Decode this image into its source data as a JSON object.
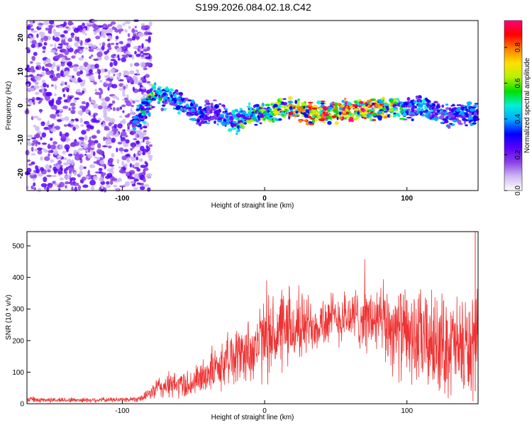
{
  "title": "S199.2026.084.02.18.C42",
  "chart_data": [
    {
      "type": "heatmap",
      "xlabel": "Height of straight line (km)",
      "ylabel": "Frequency (Hz)",
      "xlim": [
        -167,
        150
      ],
      "ylim": [
        -25,
        25
      ],
      "x_ticks": [
        "-100",
        "0",
        "100"
      ],
      "x_tick_values": [
        -100,
        0,
        100
      ],
      "y_ticks": [
        "20",
        "10",
        "0",
        "-10",
        "-20"
      ],
      "y_tick_values": [
        20,
        10,
        0,
        -10,
        -20
      ],
      "colorbar": {
        "label": "Normalized spectral amplitude",
        "range": [
          0,
          0.95
        ],
        "ticks": [
          "0.0",
          "0.2",
          "0.4",
          "0.6",
          "0.8"
        ],
        "tick_values": [
          0.0,
          0.2,
          0.4,
          0.6,
          0.8
        ],
        "colors": [
          "#ffffff",
          "#cfb8f3",
          "#8a40e6",
          "#5a00ff",
          "#0000ff",
          "#00a8ff",
          "#00f0d8",
          "#00e000",
          "#b8f000",
          "#ffe000",
          "#ff8000",
          "#ff0000",
          "#ff0077"
        ]
      },
      "noise_region_x": [
        -167,
        -80
      ],
      "ridge": {
        "x": [
          -92,
          -88,
          -84,
          -80,
          -76,
          -72,
          -66,
          -60,
          -55,
          -50,
          -45,
          -40,
          -35,
          -30,
          -25,
          -20,
          -15,
          -10,
          -5,
          0,
          5,
          10,
          15,
          20,
          30,
          40,
          50,
          60,
          70,
          80,
          90,
          95,
          100,
          105,
          110,
          115,
          120,
          125,
          130,
          135,
          140,
          145,
          150
        ],
        "freq": [
          -6,
          -3,
          -1,
          2,
          4,
          2,
          3,
          1,
          -1,
          -2,
          -3,
          -2,
          -2,
          -3,
          -4,
          -5,
          -4,
          -3,
          -3,
          -2,
          -2,
          -1,
          -1,
          -1,
          -2,
          -2,
          -2,
          -1,
          -1,
          -1,
          -1,
          -1,
          -1,
          -1,
          0,
          -1,
          -2,
          -3,
          -3,
          -2,
          -2,
          -3,
          -2
        ],
        "amplitude": [
          0.3,
          0.45,
          0.5,
          0.55,
          0.5,
          0.45,
          0.4,
          0.4,
          0.35,
          0.35,
          0.35,
          0.3,
          0.3,
          0.35,
          0.4,
          0.5,
          0.55,
          0.55,
          0.55,
          0.5,
          0.55,
          0.65,
          0.7,
          0.75,
          0.8,
          0.85,
          0.9,
          0.9,
          0.85,
          0.8,
          0.7,
          0.5,
          0.4,
          0.4,
          0.4,
          0.45,
          0.4,
          0.35,
          0.35,
          0.35,
          0.4,
          0.4,
          0.35
        ]
      }
    },
    {
      "type": "line",
      "xlabel": "Height of straight line (km)",
      "ylabel": "SNR (10 * v/v)",
      "xlim": [
        -167,
        150
      ],
      "ylim": [
        0,
        545
      ],
      "x_ticks": [
        "-100",
        "0",
        "100"
      ],
      "x_tick_values": [
        -100,
        0,
        100
      ],
      "y_ticks": [
        "0",
        "100",
        "200",
        "300",
        "400",
        "500"
      ],
      "y_tick_values": [
        0,
        100,
        200,
        300,
        400,
        500
      ],
      "color": "#ee3333",
      "envelope": {
        "x": [
          -167,
          -140,
          -120,
          -100,
          -90,
          -85,
          -80,
          -75,
          -70,
          -60,
          -50,
          -45,
          -40,
          -35,
          -30,
          -25,
          -20,
          -15,
          -10,
          -5,
          0,
          10,
          20,
          30,
          40,
          50,
          60,
          70,
          80,
          90,
          100,
          110,
          120,
          130,
          140,
          145,
          150
        ],
        "mean": [
          12,
          12,
          12,
          13,
          15,
          20,
          35,
          50,
          55,
          60,
          65,
          80,
          100,
          110,
          120,
          150,
          150,
          160,
          170,
          185,
          205,
          220,
          235,
          250,
          260,
          270,
          275,
          270,
          260,
          240,
          215,
          200,
          190,
          185,
          175,
          175,
          180
        ],
        "spread": [
          8,
          8,
          8,
          8,
          10,
          12,
          20,
          40,
          40,
          45,
          50,
          55,
          65,
          70,
          75,
          90,
          90,
          100,
          110,
          120,
          130,
          130,
          120,
          100,
          90,
          85,
          90,
          100,
          120,
          140,
          150,
          160,
          160,
          160,
          165,
          165,
          160
        ]
      },
      "spike": {
        "x": 148,
        "y": 545
      }
    }
  ]
}
